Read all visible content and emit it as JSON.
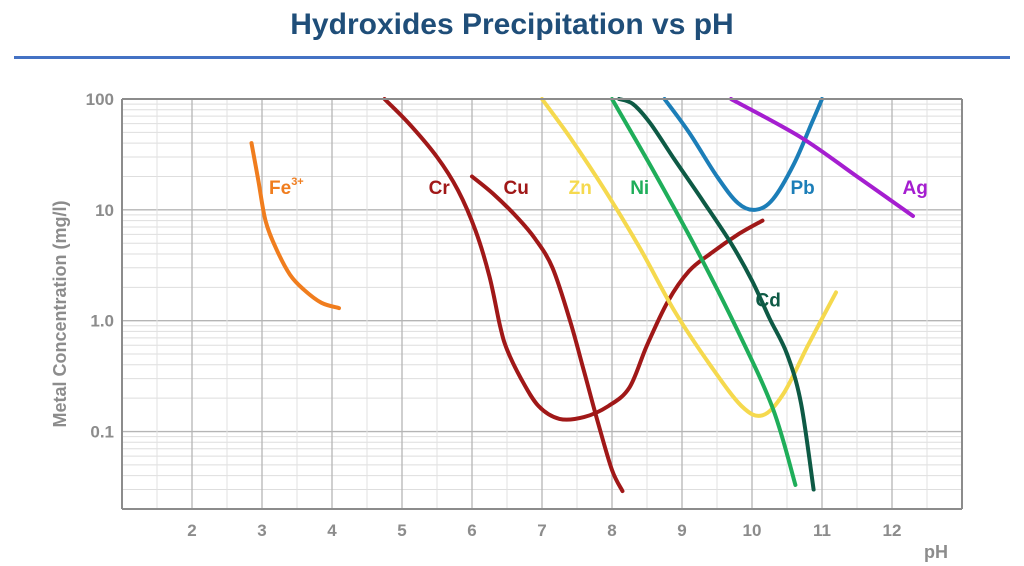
{
  "title": "Hydroxides Precipitation vs pH",
  "chart_data": {
    "type": "line",
    "title": "Hydroxides Precipitation vs pH",
    "xlabel": "pH",
    "ylabel": "Metal Concentration (mg/l)",
    "xlim": [
      1,
      13
    ],
    "ylim": [
      0.02,
      100
    ],
    "yscale": "log",
    "grid": true,
    "legend": "none (inline series labels)",
    "x_ticks": [
      "2",
      "3",
      "4",
      "5",
      "6",
      "7",
      "8",
      "9",
      "10",
      "11",
      "12"
    ],
    "y_ticks": [
      {
        "value": 100,
        "label": "100"
      },
      {
        "value": 10,
        "label": "10"
      },
      {
        "value": 1,
        "label": "1.0"
      },
      {
        "value": 0.1,
        "label": "0.1"
      }
    ],
    "series": [
      {
        "name": "Fe",
        "superscript": "3+",
        "color": "#f07d1e",
        "label_pos": [
          3.1,
          16
        ],
        "points": [
          [
            2.85,
            40
          ],
          [
            2.95,
            18
          ],
          [
            3.05,
            8
          ],
          [
            3.2,
            4.5
          ],
          [
            3.4,
            2.6
          ],
          [
            3.6,
            1.9
          ],
          [
            3.85,
            1.45
          ],
          [
            4.1,
            1.3
          ]
        ]
      },
      {
        "name": "Cr",
        "color": "#a01818",
        "label_pos": [
          5.38,
          16
        ],
        "points": [
          [
            4.75,
            100
          ],
          [
            5.1,
            60
          ],
          [
            5.5,
            30
          ],
          [
            5.8,
            15
          ],
          [
            6.05,
            6.5
          ],
          [
            6.25,
            2.5
          ],
          [
            6.4,
            0.9
          ],
          [
            6.5,
            0.55
          ],
          [
            6.7,
            0.3
          ],
          [
            6.95,
            0.17
          ],
          [
            7.25,
            0.13
          ],
          [
            7.6,
            0.135
          ],
          [
            7.95,
            0.17
          ],
          [
            8.25,
            0.25
          ],
          [
            8.5,
            0.6
          ],
          [
            8.8,
            1.5
          ],
          [
            9.1,
            2.8
          ],
          [
            9.4,
            4
          ],
          [
            9.8,
            6
          ],
          [
            10.15,
            8
          ]
        ]
      },
      {
        "name": "Cu",
        "color": "#a01818",
        "label_pos": [
          6.45,
          16
        ],
        "points": [
          [
            6.0,
            20
          ],
          [
            6.3,
            14
          ],
          [
            6.65,
            8.5
          ],
          [
            6.9,
            5.5
          ],
          [
            7.15,
            3.0
          ],
          [
            7.4,
            1.0
          ],
          [
            7.6,
            0.35
          ],
          [
            7.8,
            0.12
          ],
          [
            8.0,
            0.045
          ],
          [
            8.15,
            0.029
          ]
        ]
      },
      {
        "name": "Zn",
        "color": "#f5d94e",
        "label_pos": [
          7.38,
          16
        ],
        "points": [
          [
            7.0,
            100
          ],
          [
            7.4,
            45
          ],
          [
            7.9,
            15
          ],
          [
            8.4,
            4.5
          ],
          [
            8.9,
            1.2
          ],
          [
            9.4,
            0.4
          ],
          [
            9.85,
            0.17
          ],
          [
            10.15,
            0.14
          ],
          [
            10.45,
            0.22
          ],
          [
            10.8,
            0.6
          ],
          [
            11.2,
            1.8
          ]
        ]
      },
      {
        "name": "Ni",
        "color": "#1fae5a",
        "label_pos": [
          8.26,
          16
        ],
        "points": [
          [
            8.0,
            100
          ],
          [
            8.6,
            22
          ],
          [
            9.2,
            4.5
          ],
          [
            9.8,
            0.8
          ],
          [
            10.3,
            0.16
          ],
          [
            10.62,
            0.033
          ]
        ]
      },
      {
        "name": "Cd",
        "color": "#0e5a45",
        "label_pos": [
          10.05,
          1.55
        ],
        "points": [
          [
            8.1,
            100
          ],
          [
            8.3,
            90
          ],
          [
            8.55,
            60
          ],
          [
            8.9,
            28
          ],
          [
            9.3,
            12
          ],
          [
            9.7,
            5
          ],
          [
            10.0,
            2.3
          ],
          [
            10.25,
            1.05
          ],
          [
            10.5,
            0.5
          ],
          [
            10.7,
            0.18
          ],
          [
            10.88,
            0.03
          ]
        ]
      },
      {
        "name": "Pb",
        "color": "#1c7eb8",
        "label_pos": [
          10.55,
          16
        ],
        "points": [
          [
            8.75,
            100
          ],
          [
            9.1,
            50
          ],
          [
            9.5,
            20
          ],
          [
            9.8,
            11.5
          ],
          [
            10.05,
            10
          ],
          [
            10.3,
            12.5
          ],
          [
            10.6,
            26
          ],
          [
            10.85,
            60
          ],
          [
            11.0,
            100
          ]
        ]
      },
      {
        "name": "Ag",
        "color": "#a51ed0",
        "label_pos": [
          12.15,
          16
        ],
        "points": [
          [
            9.7,
            100
          ],
          [
            10.7,
            45
          ],
          [
            11.5,
            20
          ],
          [
            12.3,
            8.8
          ]
        ]
      }
    ]
  }
}
